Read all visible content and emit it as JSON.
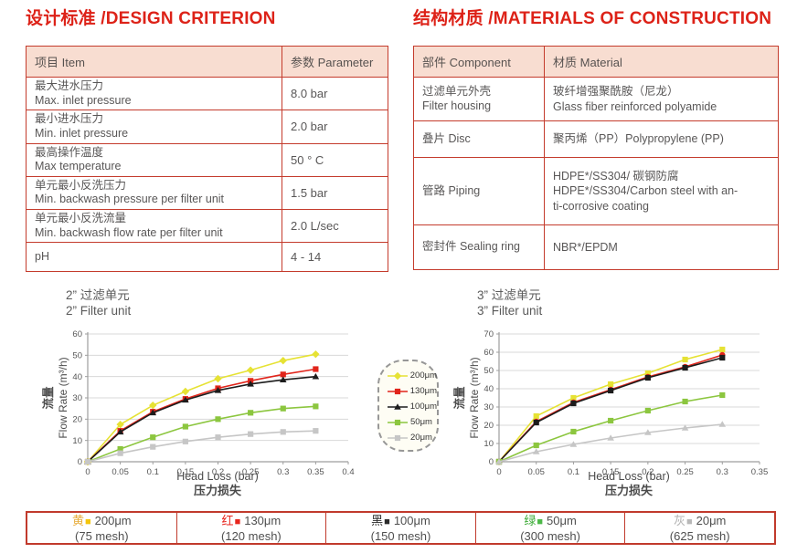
{
  "colors": {
    "title_red": "#dd2218",
    "table_border_red": "#c43b2c",
    "table_header_bg": "#f8ddd1",
    "grid": "#d8d8d8",
    "axis": "#9e9e9e",
    "yellow": "#e6e234",
    "red": "#e1251b",
    "black": "#1c1c1c",
    "green": "#8cc63f",
    "gray": "#c6c6c6"
  },
  "titles": {
    "left": "设计标准 /DESIGN CRITERION",
    "right": "结构材质 /MATERIALS OF CONSTRUCTION"
  },
  "design_table": {
    "headers": [
      "项目 Item",
      "参数 Parameter"
    ],
    "rows": [
      {
        "item_zh": "最大进水压力",
        "item_en": "Max. inlet pressure",
        "value": "8.0 bar"
      },
      {
        "item_zh": "最小进水压力",
        "item_en": "Min. inlet pressure",
        "value": "2.0 bar"
      },
      {
        "item_zh": "最高操作温度",
        "item_en": "Max temperature",
        "value": "50 ° C"
      },
      {
        "item_zh": "单元最小反洗压力",
        "item_en": "Min. backwash pressure per filter unit",
        "value": "1.5 bar"
      },
      {
        "item_zh": "单元最小反洗流量",
        "item_en": "Min. backwash flow rate per filter unit",
        "value": "2.0 L/sec"
      },
      {
        "item_zh": "pH",
        "item_en": "",
        "value": "4 - 14"
      }
    ]
  },
  "materials_table": {
    "headers": [
      "部件 Component",
      "材质 Material"
    ],
    "rows": [
      {
        "component_zh": "过滤单元外壳",
        "component_en": "Filter housing",
        "material_lines": [
          "玻纤增强聚酰胺（尼龙）",
          "Glass fiber reinforced polyamide"
        ]
      },
      {
        "component_zh": "叠片 Disc",
        "component_en": "",
        "material_lines": [
          "聚丙烯（PP）Polypropylene (PP)"
        ]
      },
      {
        "component_zh": "管路 Piping",
        "component_en": "",
        "material_lines": [
          "HDPE*/SS304/ 碳钢防腐",
          "HDPE*/SS304/Carbon steel with an-",
          "ti-corrosive coating"
        ]
      },
      {
        "component_zh": "密封件 Sealing ring",
        "component_en": "",
        "material_lines": [
          "NBR*/EPDM"
        ]
      }
    ]
  },
  "legend_box": {
    "items": [
      {
        "label": "200μm",
        "color": "#e6e234",
        "marker": "diamond"
      },
      {
        "label": "130μm",
        "color": "#e1251b",
        "marker": "square"
      },
      {
        "label": "100μm",
        "color": "#1c1c1c",
        "marker": "triangle"
      },
      {
        "label": "50μm",
        "color": "#8cc63f",
        "marker": "square"
      },
      {
        "label": "20μm",
        "color": "#c6c6c6",
        "marker": "square"
      }
    ]
  },
  "chart_data": [
    {
      "type": "line",
      "title_zh": "2” 过滤单元",
      "title_en": "2” Filter unit",
      "ylabel_zh": "流量",
      "ylabel": "Flow Rate (m³/h)",
      "xlabel": "Head Loss (bar)",
      "xlabel_zh": "压力损失",
      "xlim": [
        0,
        0.4
      ],
      "ylim": [
        0,
        60
      ],
      "xticks": [
        0,
        0.05,
        0.1,
        0.15,
        0.2,
        0.25,
        0.3,
        0.35,
        0.4
      ],
      "yticks": [
        0,
        10,
        20,
        30,
        40,
        50,
        60
      ],
      "grid": "horizontal",
      "x": [
        0,
        0.05,
        0.1,
        0.15,
        0.2,
        0.25,
        0.3,
        0.35
      ],
      "series": [
        {
          "name": "200μm",
          "color": "#e6e234",
          "marker": "diamond",
          "values": [
            0,
            17.5,
            26.5,
            33,
            39,
            43,
            47.5,
            50.5
          ]
        },
        {
          "name": "130μm",
          "color": "#e1251b",
          "marker": "square",
          "values": [
            0,
            14.5,
            23.5,
            29.5,
            34.5,
            38,
            41,
            43.5
          ]
        },
        {
          "name": "100μm",
          "color": "#1c1c1c",
          "marker": "triangle",
          "values": [
            0,
            14,
            23,
            29,
            33.5,
            36.5,
            38.5,
            40
          ]
        },
        {
          "name": "50μm",
          "color": "#8cc63f",
          "marker": "square",
          "values": [
            0,
            6,
            11.5,
            16.5,
            20,
            23,
            25,
            26
          ]
        },
        {
          "name": "20μm",
          "color": "#c6c6c6",
          "marker": "square",
          "values": [
            0,
            4,
            7,
            9.5,
            11.5,
            13,
            14,
            14.5
          ]
        }
      ]
    },
    {
      "type": "line",
      "title_zh": "3” 过滤单元",
      "title_en": "3” Filter unit",
      "ylabel_zh": "流量",
      "ylabel": "Flow Rate (m³/h)",
      "xlabel": "Head Loss (bar)",
      "xlabel_zh": "压力损失",
      "xlim": [
        0,
        0.35
      ],
      "ylim": [
        0,
        70
      ],
      "xticks": [
        0,
        0.05,
        0.1,
        0.15,
        0.2,
        0.25,
        0.3,
        0.35
      ],
      "yticks": [
        0,
        10,
        20,
        30,
        40,
        50,
        60,
        70
      ],
      "grid": "horizontal",
      "x": [
        0,
        0.05,
        0.1,
        0.15,
        0.2,
        0.25,
        0.3
      ],
      "series": [
        {
          "name": "200μm",
          "color": "#e6e234",
          "marker": "square",
          "values": [
            0,
            25,
            35,
            42.5,
            48.5,
            56,
            61.5
          ]
        },
        {
          "name": "130μm",
          "color": "#e1251b",
          "marker": "circle",
          "values": [
            0,
            22,
            32.5,
            39.5,
            46.5,
            52,
            58.5
          ]
        },
        {
          "name": "100μm",
          "color": "#1c1c1c",
          "marker": "square",
          "values": [
            0,
            21.5,
            32,
            39,
            46,
            51.5,
            57
          ]
        },
        {
          "name": "50μm",
          "color": "#8cc63f",
          "marker": "square",
          "values": [
            0,
            9,
            16.5,
            22.5,
            28,
            33,
            36.5
          ]
        },
        {
          "name": "20μm",
          "color": "#c6c6c6",
          "marker": "triangle",
          "values": [
            0,
            5.5,
            9.5,
            13,
            16,
            18.5,
            20.5
          ]
        }
      ]
    }
  ],
  "bottom_strip": {
    "cells": [
      {
        "char": "黄",
        "char_color": "#e7ac3b",
        "swatch_color": "#f4c50a",
        "label": "200μm",
        "mesh": "(75 mesh)"
      },
      {
        "char": "红",
        "char_color": "#e8251d",
        "swatch_color": "#e8251d",
        "label": "130μm",
        "mesh": "(120 mesh)"
      },
      {
        "char": "黑",
        "char_color": "#2b2b2b",
        "swatch_color": "#2b2b2b",
        "label": "100μm",
        "mesh": "(150 mesh)"
      },
      {
        "char": "绿",
        "char_color": "#3aaa35",
        "swatch_color": "#4cb848",
        "label": "50μm",
        "mesh": "(300 mesh)"
      },
      {
        "char": "灰",
        "char_color": "#b3b3b3",
        "swatch_color": "#b8b8b8",
        "label": "20μm",
        "mesh": "(625 mesh)"
      }
    ]
  }
}
